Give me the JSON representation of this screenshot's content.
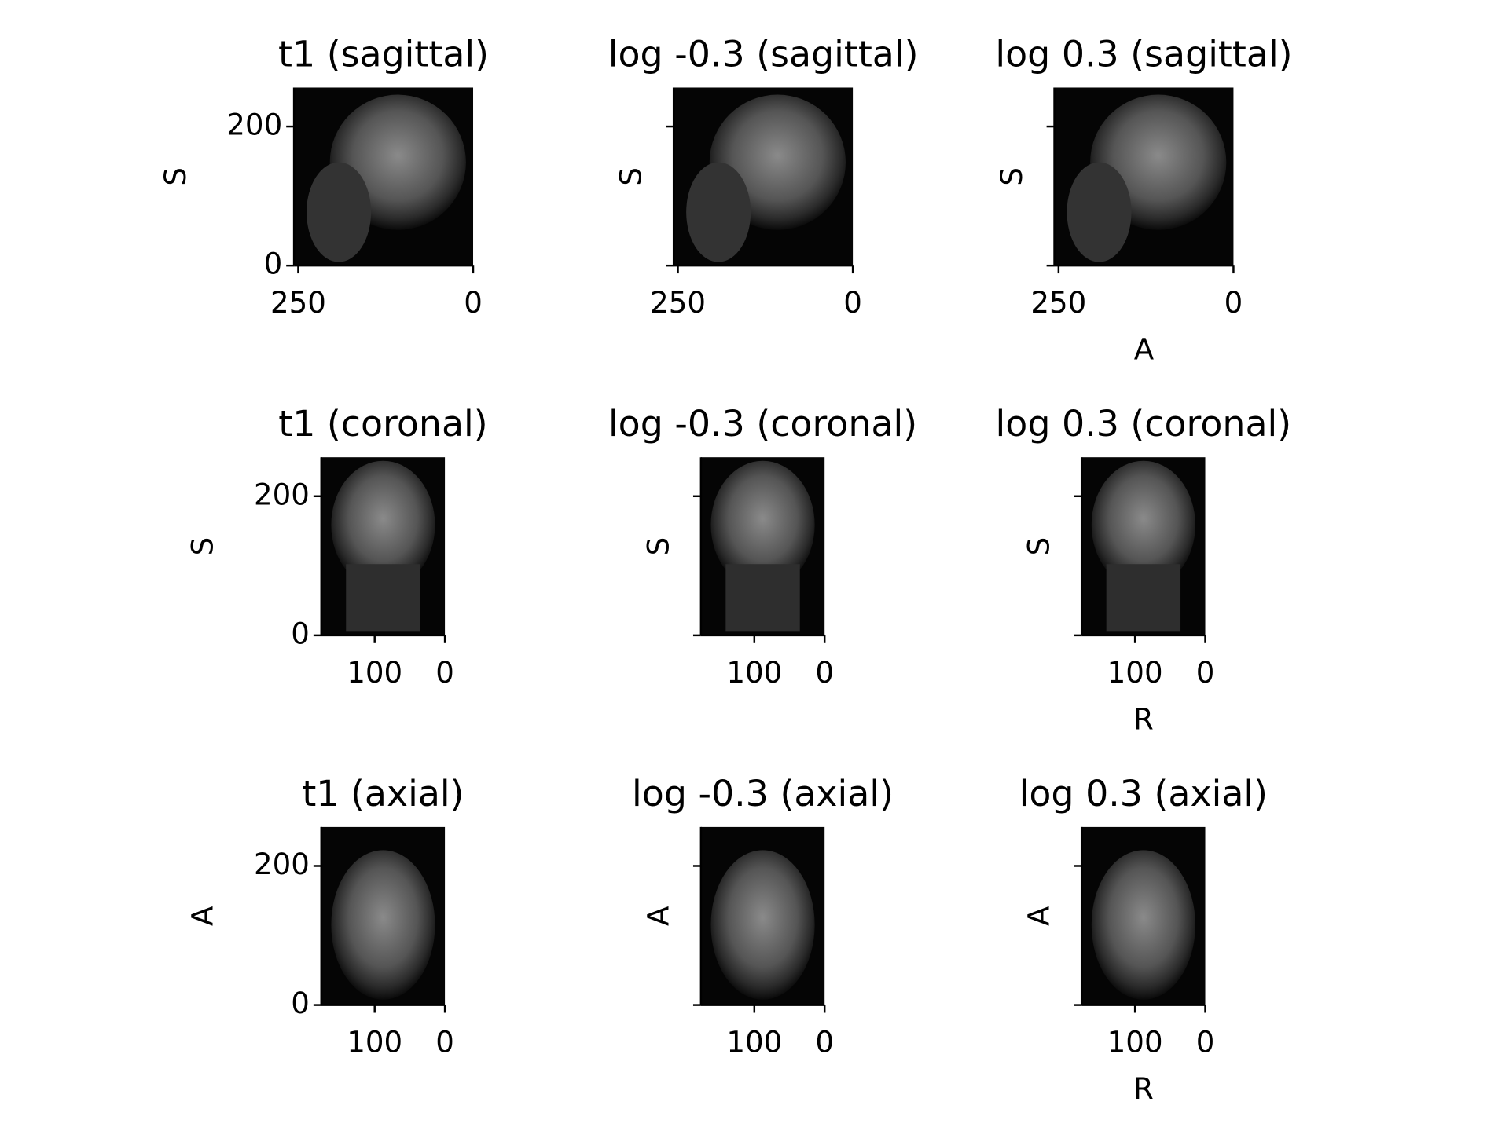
{
  "chart_data": [
    {
      "type": "image",
      "title": "t1 (sagittal)",
      "ylabel": "S",
      "xlim": [
        256,
        0
      ],
      "ylim": [
        0,
        256
      ],
      "xticks": [
        250,
        0
      ],
      "yticks": [
        0,
        200
      ]
    },
    {
      "type": "image",
      "title": "log -0.3 (sagittal)",
      "ylabel": "S",
      "xlim": [
        256,
        0
      ],
      "ylim": [
        0,
        256
      ],
      "xticks": [
        250,
        0
      ]
    },
    {
      "type": "image",
      "title": "log 0.3 (sagittal)",
      "xlabel": "A",
      "ylabel": "S",
      "xlim": [
        256,
        0
      ],
      "ylim": [
        0,
        256
      ],
      "xticks": [
        250,
        0
      ]
    },
    {
      "type": "image",
      "title": "t1 (coronal)",
      "ylabel": "S",
      "xlim": [
        176,
        0
      ],
      "ylim": [
        0,
        256
      ],
      "xticks": [
        100,
        0
      ],
      "yticks": [
        0,
        200
      ]
    },
    {
      "type": "image",
      "title": "log -0.3 (coronal)",
      "ylabel": "S",
      "xlim": [
        176,
        0
      ],
      "ylim": [
        0,
        256
      ],
      "xticks": [
        100,
        0
      ]
    },
    {
      "type": "image",
      "title": "log 0.3 (coronal)",
      "xlabel": "R",
      "ylabel": "S",
      "xlim": [
        176,
        0
      ],
      "ylim": [
        0,
        256
      ],
      "xticks": [
        100,
        0
      ]
    },
    {
      "type": "image",
      "title": "t1 (axial)",
      "ylabel": "A",
      "xlim": [
        176,
        0
      ],
      "ylim": [
        0,
        256
      ],
      "xticks": [
        100,
        0
      ],
      "yticks": [
        0,
        200
      ]
    },
    {
      "type": "image",
      "title": "log -0.3 (axial)",
      "ylabel": "A",
      "xlim": [
        176,
        0
      ],
      "ylim": [
        0,
        256
      ],
      "xticks": [
        100,
        0
      ]
    },
    {
      "type": "image",
      "title": "log 0.3 (axial)",
      "xlabel": "R",
      "ylabel": "A",
      "xlim": [
        176,
        0
      ],
      "ylim": [
        0,
        256
      ],
      "xticks": [
        100,
        0
      ]
    }
  ]
}
